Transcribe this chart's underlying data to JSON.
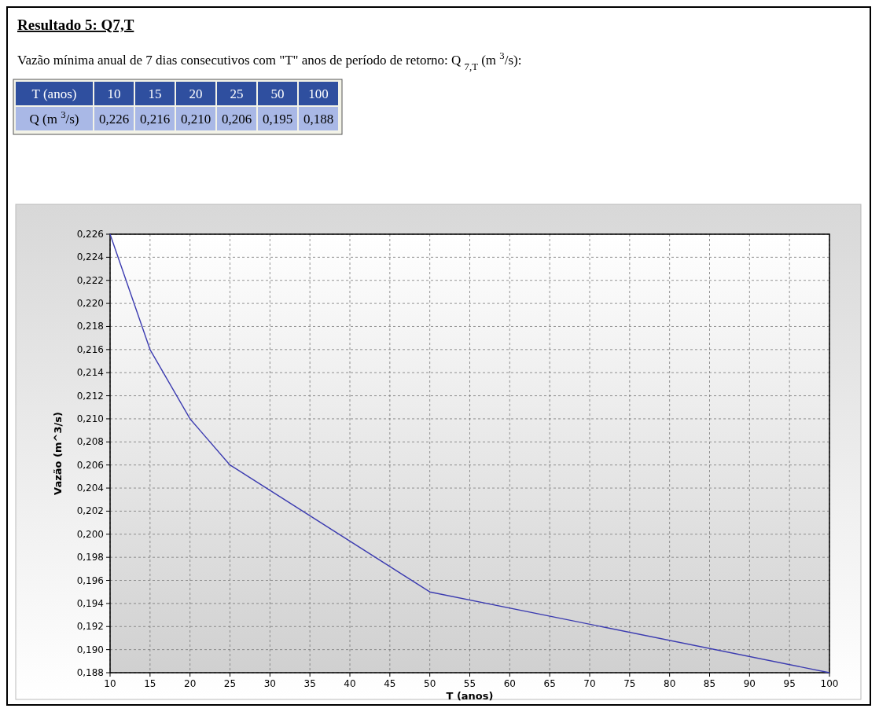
{
  "chart_data": {
    "type": "line",
    "title": "Resultado 5: Q7,T",
    "subtitle": "Vazão mínima anual de 7 dias consecutivos com \"T\" anos de período de retorno: Q $_{7,T}$ (m $^{3}$/s):",
    "annotations": [
      "T (anos)",
      "10",
      "15",
      "20",
      "25",
      "50",
      "100",
      "Q (m $^{3}$/s)",
      "0,226",
      "0,216",
      "0,210",
      "0,206",
      "0,195",
      "0,188"
    ],
    "xlabel": "T (anos)",
    "ylabel": "Vazão (m^3/s)",
    "x": [
      10,
      15,
      20,
      25,
      50,
      100
    ],
    "series": [
      {
        "color": "#3b3bb0",
        "values": [
          0.226,
          0.216,
          0.21,
          0.206,
          0.195,
          0.188
        ]
      }
    ],
    "xlim": [
      10,
      100
    ],
    "xticks": [
      10,
      15,
      20,
      25,
      30,
      35,
      40,
      45,
      50,
      55,
      60,
      65,
      70,
      75,
      80,
      85,
      90,
      95,
      100
    ],
    "ylim": [
      0.188,
      0.226
    ],
    "yticks": [
      {
        "value": 0.188,
        "label": "0,188"
      },
      {
        "value": 0.19,
        "label": "0,190"
      },
      {
        "value": 0.192,
        "label": "0,192"
      },
      {
        "value": 0.194,
        "label": "0,194"
      },
      {
        "value": 0.196,
        "label": "0,196"
      },
      {
        "value": 0.198,
        "label": "0,198"
      },
      {
        "value": 0.2,
        "label": "0,200"
      },
      {
        "value": 0.202,
        "label": "0,202"
      },
      {
        "value": 0.204,
        "label": "0,204"
      },
      {
        "value": 0.206,
        "label": "0,206"
      },
      {
        "value": 0.208,
        "label": "0,208"
      },
      {
        "value": 0.21,
        "label": "0,210"
      },
      {
        "value": 0.212,
        "label": "0,212"
      },
      {
        "value": 0.214,
        "label": "0,214"
      },
      {
        "value": 0.216,
        "label": "0,216"
      },
      {
        "value": 0.218,
        "label": "0,218"
      },
      {
        "value": 0.22,
        "label": "0,220"
      },
      {
        "value": 0.222,
        "label": "0,222"
      },
      {
        "value": 0.224,
        "label": "0,224"
      },
      {
        "value": 0.226,
        "label": "0,226"
      }
    ],
    "grid": true,
    "line_style": "solid",
    "marker": "none"
  }
}
